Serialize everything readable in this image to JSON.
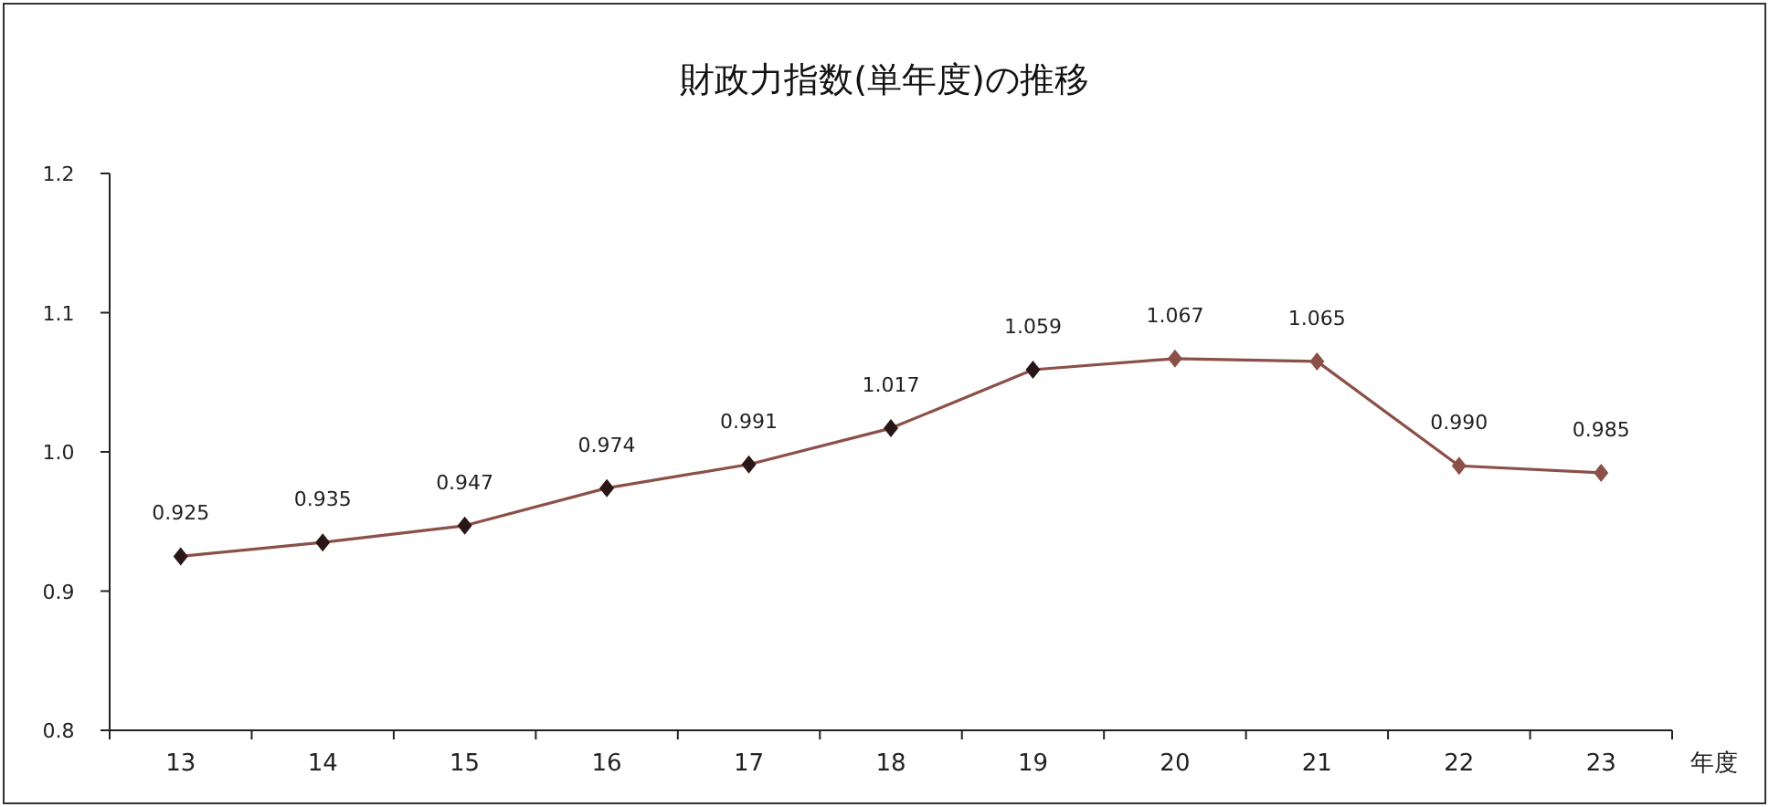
{
  "chart_data": {
    "type": "line",
    "title": "財政力指数(単年度)の推移",
    "xlabel": "年度",
    "categories": [
      "13",
      "14",
      "15",
      "16",
      "17",
      "18",
      "19",
      "20",
      "21",
      "22",
      "23"
    ],
    "series": [
      {
        "color": "#8b5048",
        "colors": [
          "#2a1616",
          "#2a1616",
          "#2a1616",
          "#2a1616",
          "#2a1616",
          "#2a1616",
          "#2a1616",
          "#8b5048",
          "#8b5048",
          "#8b5048",
          "#8b5048"
        ],
        "values": [
          0.925,
          0.935,
          0.947,
          0.974,
          0.991,
          1.017,
          1.059,
          1.067,
          1.065,
          0.99,
          0.985
        ]
      }
    ],
    "ylim": [
      0.8,
      1.2
    ],
    "yticks": [
      {
        "value": 0.8,
        "label": "0.8"
      },
      {
        "value": 0.9,
        "label": "0.9"
      },
      {
        "value": 1.0,
        "label": "1.0"
      },
      {
        "value": 1.1,
        "label": "1.1"
      },
      {
        "value": 1.2,
        "label": "1.2"
      }
    ],
    "value_labels": [
      "0.925",
      "0.935",
      "0.947",
      "0.974",
      "0.991",
      "1.017",
      "1.059",
      "1.067",
      "1.065",
      "0.990",
      "0.985"
    ],
    "marker": "diamond",
    "line_style": "solid",
    "grid": false
  }
}
